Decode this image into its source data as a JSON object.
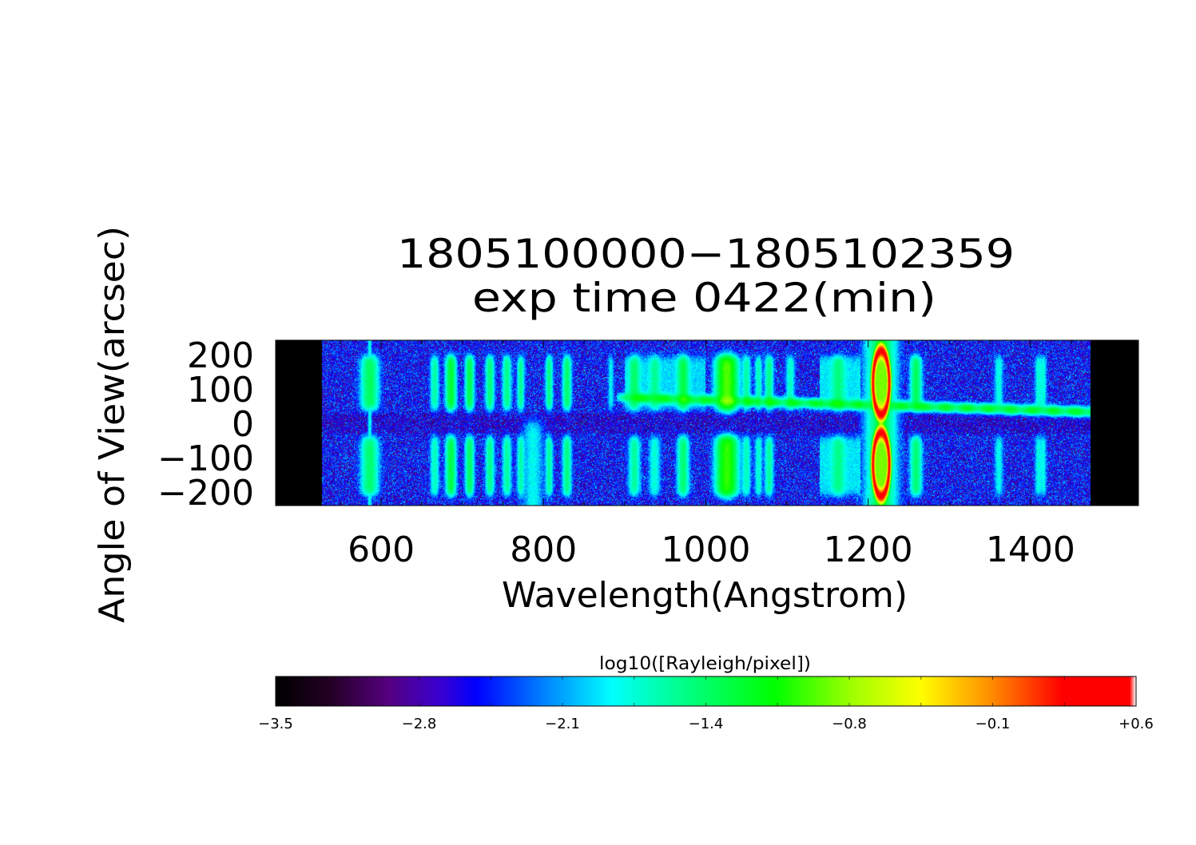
{
  "chart_data": {
    "type": "heatmap",
    "title": [
      "1805100000−1805102359",
      "exp time 0422(min)"
    ],
    "xlabel": "Wavelength(Angstrom)",
    "ylabel": "Angle of View(arcsec)",
    "xlim": [
      470,
      1533
    ],
    "ylim": [
      -240,
      242
    ],
    "x_ticks": [
      600,
      800,
      1000,
      1200,
      1400
    ],
    "x_tick_labels": [
      "600",
      "800",
      "1000",
      "1200",
      "1400"
    ],
    "y_ticks": [
      200,
      100,
      0,
      -100,
      -200
    ],
    "y_tick_labels": [
      "200",
      "100",
      "0",
      "−100",
      "−200"
    ],
    "data_wavelength_range": [
      527,
      1474
    ],
    "background_log_level": -2.55,
    "emission_lines": [
      {
        "wavelength": 586,
        "peak": -1.45,
        "width": 6,
        "extent": "both"
      },
      {
        "wavelength": 666,
        "peak": -1.7,
        "width": 3,
        "extent": "both"
      },
      {
        "wavelength": 686,
        "peak": -1.3,
        "width": 3.5,
        "extent": "both"
      },
      {
        "wavelength": 709,
        "peak": -1.4,
        "width": 3,
        "extent": "both"
      },
      {
        "wavelength": 734,
        "peak": -1.55,
        "width": 3,
        "extent": "both"
      },
      {
        "wavelength": 755,
        "peak": -1.6,
        "width": 3,
        "extent": "both"
      },
      {
        "wavelength": 772,
        "peak": -1.65,
        "width": 2.5,
        "extent": "both"
      },
      {
        "wavelength": 787,
        "peak": -1.95,
        "width": 7,
        "extent": "lower-full"
      },
      {
        "wavelength": 807,
        "peak": -1.6,
        "width": 2.5,
        "extent": "both"
      },
      {
        "wavelength": 829,
        "peak": -1.5,
        "width": 3,
        "extent": "both"
      },
      {
        "wavelength": 883,
        "peak": -2.0,
        "width": 2,
        "extent": "upper"
      },
      {
        "wavelength": 912,
        "peak": -1.6,
        "width": 4,
        "extent": "both"
      },
      {
        "wavelength": 937,
        "peak": -1.8,
        "width": 4,
        "extent": "both"
      },
      {
        "wavelength": 972,
        "peak": -1.45,
        "width": 4,
        "extent": "both"
      },
      {
        "wavelength": 1026,
        "peak": -0.95,
        "width": 7,
        "extent": "both"
      },
      {
        "wavelength": 1050,
        "peak": -1.7,
        "width": 3,
        "extent": "both"
      },
      {
        "wavelength": 1065,
        "peak": -1.75,
        "width": 2.5,
        "extent": "both"
      },
      {
        "wavelength": 1078,
        "peak": -1.6,
        "width": 3,
        "extent": "both"
      },
      {
        "wavelength": 1104,
        "peak": -1.8,
        "width": 3,
        "extent": "upper"
      },
      {
        "wavelength": 1163,
        "peak": -1.7,
        "width": 5,
        "extent": "both"
      },
      {
        "wavelength": 1259,
        "peak": -1.45,
        "width": 4,
        "extent": "both"
      },
      {
        "wavelength": 1361,
        "peak": -1.9,
        "width": 3,
        "extent": "both"
      },
      {
        "wavelength": 1410,
        "peak": -1.85,
        "width": 2.5,
        "extent": "both"
      },
      {
        "wavelength": 1416,
        "peak": -1.9,
        "width": 2,
        "extent": "both"
      }
    ],
    "lyman_alpha": {
      "wavelength": 1216,
      "peak": 0.3
    },
    "continuum": {
      "wavelength_range": [
        900,
        1474
      ],
      "angle_range": [
        75,
        33
      ],
      "peak": -1.3
    },
    "colorbar": {
      "label": "log10([Rayleigh/pixel])",
      "range": [
        -3.5,
        0.6
      ],
      "tick_labels": [
        "−3.5",
        "−2.8",
        "−2.1",
        "−1.4",
        "−0.8",
        "−0.1",
        "+0.6"
      ],
      "colormap": [
        [
          0,
          "#000000"
        ],
        [
          0.06,
          "#220022"
        ],
        [
          0.13,
          "#560080"
        ],
        [
          0.19,
          "#3c00d0"
        ],
        [
          0.233,
          "#0000ff"
        ],
        [
          0.31,
          "#0080ff"
        ],
        [
          0.39,
          "#00ffff"
        ],
        [
          0.48,
          "#00ff80"
        ],
        [
          0.58,
          "#00ff00"
        ],
        [
          0.67,
          "#a0ff00"
        ],
        [
          0.75,
          "#ffff00"
        ],
        [
          0.83,
          "#ff9000"
        ],
        [
          0.915,
          "#ff0000"
        ],
        [
          0.993,
          "#ff0000"
        ],
        [
          1,
          "#ffffff"
        ]
      ]
    }
  }
}
